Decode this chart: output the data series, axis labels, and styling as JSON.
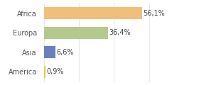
{
  "categories": [
    "Africa",
    "Europa",
    "Asia",
    "America"
  ],
  "values": [
    56.1,
    36.4,
    6.6,
    0.9
  ],
  "labels": [
    "56,1%",
    "36,4%",
    "6,6%",
    "0,9%"
  ],
  "bar_colors": [
    "#f0c07a",
    "#b5c98e",
    "#6b7fbf",
    "#e8c84a"
  ],
  "background_color": "#ffffff",
  "xlim": [
    0,
    68
  ],
  "bar_height": 0.62,
  "label_fontsize": 7.0,
  "tick_fontsize": 7.0,
  "grid_color": "#dddddd",
  "grid_xticks": [
    0,
    20,
    40,
    60
  ]
}
